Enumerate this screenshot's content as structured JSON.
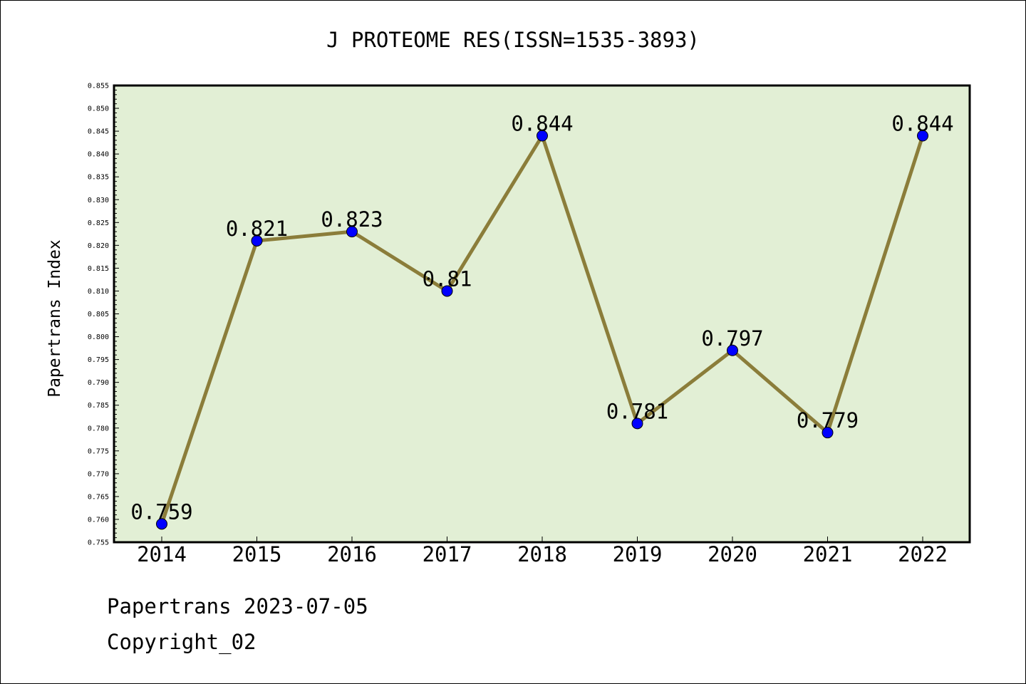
{
  "chart_data": {
    "type": "line",
    "title": "J PROTEOME RES(ISSN=1535-3893)",
    "xlabel": "",
    "ylabel": "Papertrans Index",
    "categories": [
      "2014",
      "2015",
      "2016",
      "2017",
      "2018",
      "2019",
      "2020",
      "2021",
      "2022"
    ],
    "series": [
      {
        "values": [
          0.759,
          0.821,
          0.823,
          0.81,
          0.844,
          0.781,
          0.797,
          0.779,
          0.844
        ],
        "labels": [
          "0.759",
          "0.821",
          "0.823",
          "0.81",
          "0.844",
          "0.781",
          "0.797",
          "0.779",
          "0.844"
        ]
      }
    ],
    "ylim": [
      0.755,
      0.855
    ],
    "ytick_step": 0.005,
    "grid": false,
    "legend": "none",
    "colors": {
      "plot_background": "#e2efd5",
      "line": "#8b7d3a",
      "marker": "#0000ff"
    }
  },
  "footer": {
    "line1": "Papertrans 2023-07-05",
    "line2": "Copyright_02"
  }
}
